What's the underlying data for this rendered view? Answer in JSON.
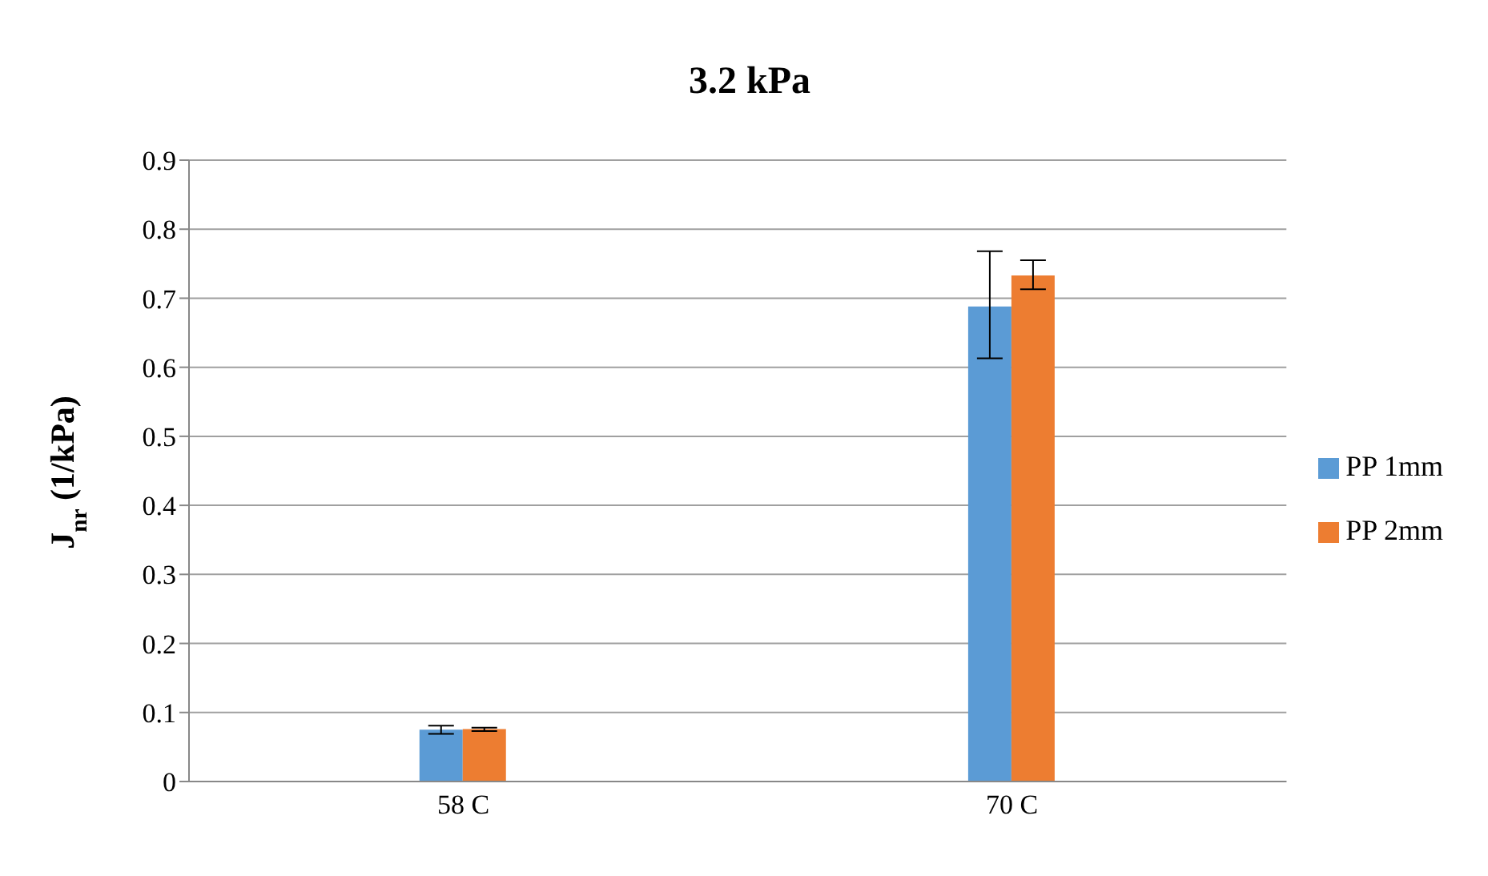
{
  "chart_data": {
    "type": "bar",
    "title": "3.2 kPa",
    "ylabel": "J$_{nr}$ (1/kPa)",
    "categories": [
      "58 C",
      "70 C"
    ],
    "series": [
      {
        "name": "PP 1mm",
        "color": "#5b9bd5",
        "values": [
          0.075,
          0.688
        ],
        "errors": [
          [
            0.069,
            0.081
          ],
          [
            0.613,
            0.768
          ]
        ]
      },
      {
        "name": "PP 2mm",
        "color": "#ed7d31",
        "values": [
          0.076,
          0.733
        ],
        "errors": [
          [
            0.073,
            0.078
          ],
          [
            0.713,
            0.755
          ]
        ]
      }
    ],
    "ylim": [
      0,
      0.9
    ],
    "yticks": [
      0,
      0.1,
      0.2,
      0.3,
      0.4,
      0.5,
      0.6,
      0.7,
      0.8,
      0.9
    ],
    "grid": "y",
    "legend": "right"
  }
}
